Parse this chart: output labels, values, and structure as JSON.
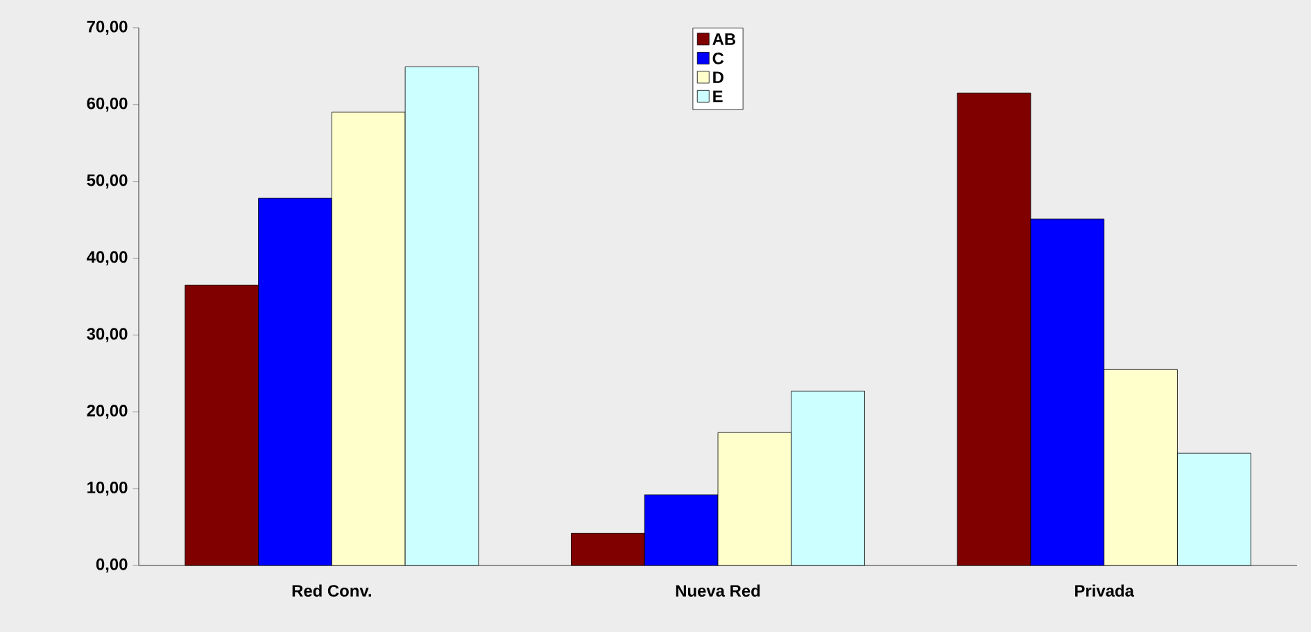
{
  "chart_data": {
    "type": "bar",
    "categories": [
      "Red Conv.",
      "Nueva Red",
      "Privada"
    ],
    "series": [
      {
        "name": "AB",
        "color": "#800000",
        "values": [
          36.5,
          4.2,
          61.5
        ]
      },
      {
        "name": "C",
        "color": "#0000ff",
        "values": [
          47.8,
          9.2,
          45.1
        ]
      },
      {
        "name": "D",
        "color": "#ffffcc",
        "values": [
          59,
          17.3,
          25.5
        ]
      },
      {
        "name": "E",
        "color": "#ccffff",
        "values": [
          64.9,
          22.7,
          14.6
        ]
      }
    ],
    "ylim": [
      0,
      70
    ],
    "yticks": [
      {
        "value": 0,
        "label": "0,00"
      },
      {
        "value": 10,
        "label": "10,00"
      },
      {
        "value": 20,
        "label": "20,00"
      },
      {
        "value": 30,
        "label": "30,00"
      },
      {
        "value": 40,
        "label": "40,00"
      },
      {
        "value": 50,
        "label": "50,00"
      },
      {
        "value": 60,
        "label": "60,00"
      },
      {
        "value": 70,
        "label": "70,00"
      }
    ],
    "grid": false,
    "legend": "top"
  }
}
